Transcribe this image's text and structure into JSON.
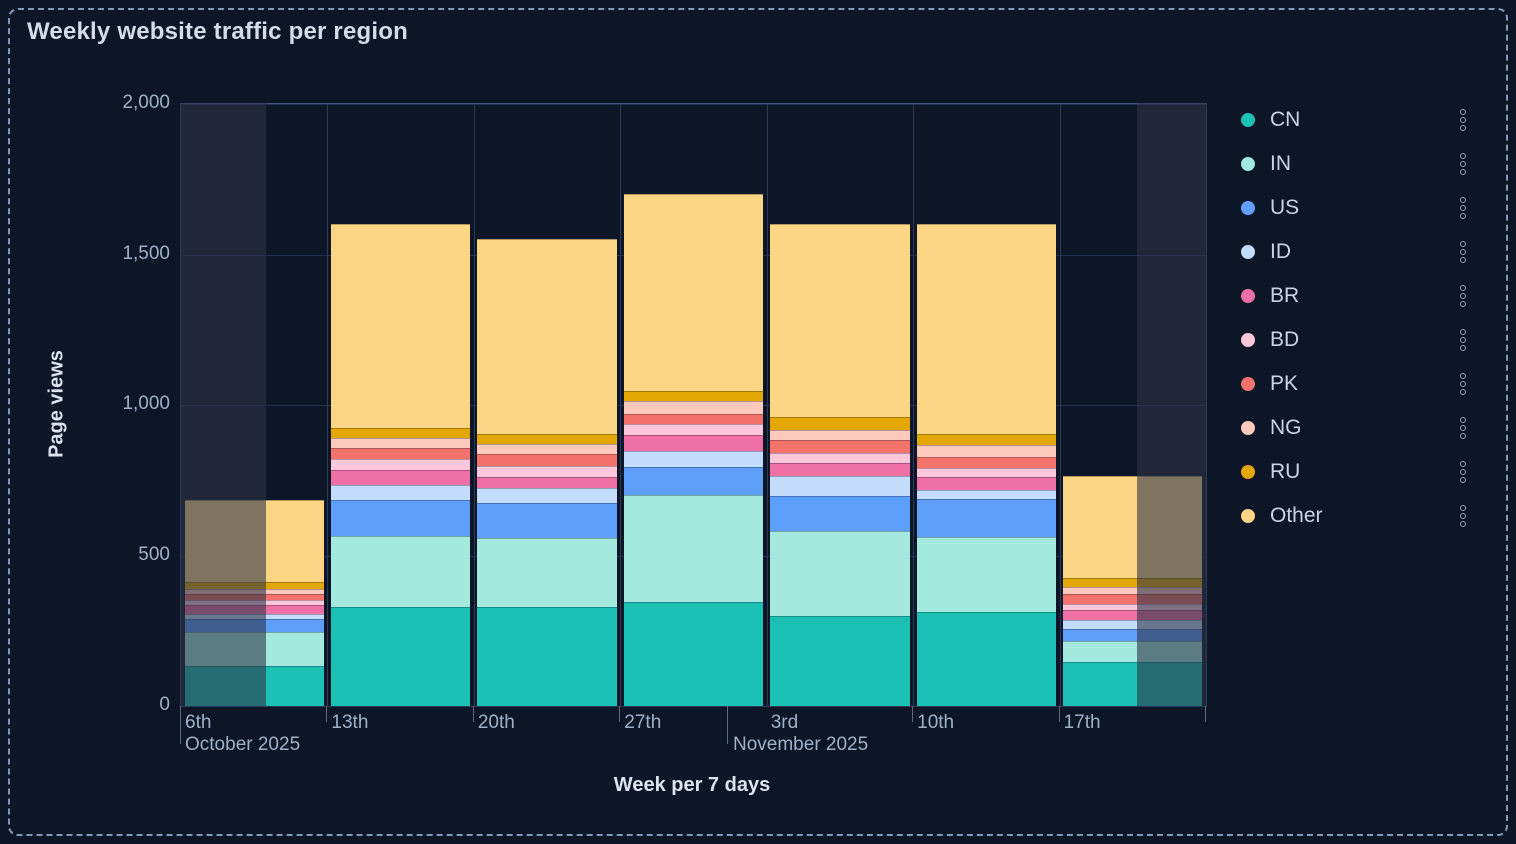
{
  "panel": {
    "title": "Weekly website traffic per region"
  },
  "icons": {
    "legend_item_menu": "kebab-vertical-circles"
  },
  "theme": {
    "background": "#0d1626",
    "dashed_border": "#8298ba",
    "title_color": "#d3dce8",
    "tick_label_color": "#9fb0c9",
    "gridline_color": "#223150",
    "dim_overlay": "rgba(43,52,70,0.6)"
  },
  "chart_data": {
    "type": "bar",
    "stacked": true,
    "title": "Weekly website traffic per region",
    "xlabel": "Week per 7 days",
    "ylabel": "Page views",
    "ylim": [
      0,
      2000
    ],
    "ytick_values": [
      0,
      500,
      1000,
      1500,
      2000
    ],
    "ytick_labels": [
      "0",
      "500",
      "1,000",
      "1,500",
      "2,000"
    ],
    "grid": "horizontal",
    "legend_position": "right",
    "categories": [
      "6th",
      "13th",
      "20th",
      "27th",
      "3rd",
      "10th",
      "17th"
    ],
    "month_labels": [
      "October 2025",
      "November 2025"
    ],
    "partially_dimmed_categories": [
      "6th",
      "17th"
    ],
    "totals": [
      685,
      1600,
      1550,
      1700,
      1600,
      1600,
      765
    ],
    "series": [
      {
        "name": "CN",
        "color": "#1cc1b6",
        "values": [
          133,
          330,
          330,
          346,
          299,
          313,
          146
        ]
      },
      {
        "name": "IN",
        "color": "#a3e9dd",
        "values": [
          114,
          235,
          229,
          354,
          282,
          248,
          70
        ]
      },
      {
        "name": "US",
        "color": "#5f9ffc",
        "values": [
          43,
          118,
          117,
          95,
          117,
          128,
          41
        ]
      },
      {
        "name": "ID",
        "color": "#c3dcfb",
        "values": [
          17,
          52,
          47,
          53,
          66,
          28,
          28
        ]
      },
      {
        "name": "BR",
        "color": "#ef70a5",
        "values": [
          28,
          48,
          38,
          51,
          44,
          44,
          33
        ]
      },
      {
        "name": "BD",
        "color": "#fdc7db",
        "values": [
          16,
          37,
          36,
          39,
          33,
          31,
          20
        ]
      },
      {
        "name": "PK",
        "color": "#f4726c",
        "values": [
          22,
          38,
          39,
          33,
          42,
          35,
          33
        ]
      },
      {
        "name": "NG",
        "color": "#fdc9bc",
        "values": [
          15,
          31,
          36,
          43,
          33,
          39,
          25
        ]
      },
      {
        "name": "RU",
        "color": "#e3a805",
        "values": [
          24,
          36,
          31,
          31,
          44,
          37,
          28
        ]
      },
      {
        "name": "Other",
        "color": "#fbd584",
        "values": [
          273,
          675,
          647,
          655,
          640,
          697,
          341
        ]
      }
    ]
  }
}
